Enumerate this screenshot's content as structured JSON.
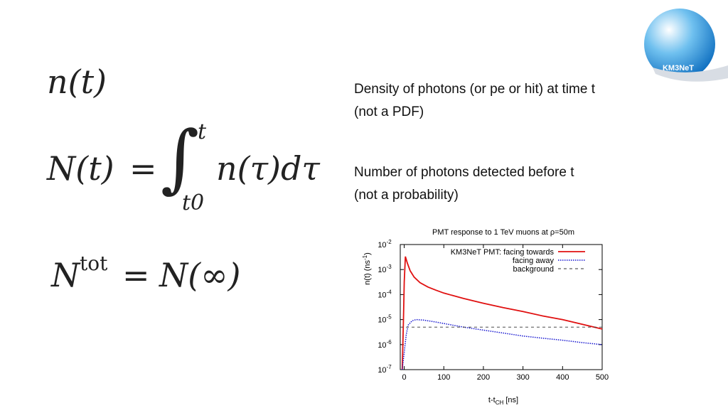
{
  "logo": {
    "text": "KM3NeT",
    "colors": {
      "disc": "#1a8fd6",
      "swoosh": "#0a3a8a"
    }
  },
  "formulas": {
    "n_t": {
      "lhs": "n(t)"
    },
    "N_t": {
      "lhs": "N(t)",
      "equals": "=",
      "upper": "t",
      "lower": "t0",
      "integrand": "n(τ)dτ"
    },
    "N_tot": {
      "base": "N",
      "sup": "tot",
      "equals": "=",
      "rhs": "N(∞)"
    }
  },
  "descriptions": {
    "density": {
      "line1": "Density of photons (or pe or hit) at time t",
      "line2": "(not a PDF)"
    },
    "number": {
      "line1": "Number of photons detected before t",
      "line2": "(not a probability)"
    }
  },
  "chart_data": {
    "type": "line",
    "title": "PMT response to 1 TeV muons at ρ=50m",
    "xlabel": "t-t",
    "xlabel_sub": "CH",
    "xlabel_unit": " [ns]",
    "ylabel": "n(t)  (ns",
    "ylabel_sup": "-1",
    "ylabel_close": ")",
    "y_scale": "log",
    "xlim": [
      -10,
      500
    ],
    "ylim": [
      1e-07,
      0.01
    ],
    "x_ticks": [
      0,
      100,
      200,
      300,
      400,
      500
    ],
    "y_ticks": [
      {
        "exp": "-2",
        "v": 0.01
      },
      {
        "exp": "-3",
        "v": 0.001
      },
      {
        "exp": "-4",
        "v": 0.0001
      },
      {
        "exp": "-5",
        "v": 1e-05
      },
      {
        "exp": "-6",
        "v": 1e-06
      },
      {
        "exp": "-7",
        "v": 1e-07
      }
    ],
    "y_tick_base": "10",
    "legend_position": "top-right",
    "series": [
      {
        "name": "KM3NeT PMT: facing towards",
        "color": "#e01010",
        "style": "solid",
        "x": [
          -5,
          -2,
          0,
          3,
          8,
          15,
          25,
          40,
          60,
          80,
          100,
          150,
          200,
          250,
          300,
          350,
          400,
          450,
          500
        ],
        "y": [
          1e-07,
          1e-05,
          0.00032,
          0.0033,
          0.0018,
          0.0009,
          0.0005,
          0.0003,
          0.0002,
          0.00015,
          0.000115,
          7e-05,
          4.5e-05,
          3e-05,
          2.1e-05,
          1.4e-05,
          1e-05,
          6.5e-06,
          4.2e-06
        ]
      },
      {
        "name": "facing away",
        "color": "#1515d0",
        "style": "dotted",
        "x": [
          -5,
          0,
          5,
          10,
          20,
          30,
          50,
          80,
          100,
          150,
          200,
          250,
          300,
          350,
          400,
          450,
          500
        ],
        "y": [
          1e-07,
          5e-07,
          2.5e-06,
          6e-06,
          9e-06,
          1e-05,
          9.5e-06,
          8e-06,
          7e-06,
          5e-06,
          3.8e-06,
          2.9e-06,
          2.2e-06,
          1.8e-06,
          1.5e-06,
          1.2e-06,
          1e-06
        ]
      },
      {
        "name": "background",
        "color": "#333333",
        "style": "dashed",
        "x": [
          -10,
          500
        ],
        "y": [
          5e-06,
          5e-06
        ]
      }
    ]
  }
}
